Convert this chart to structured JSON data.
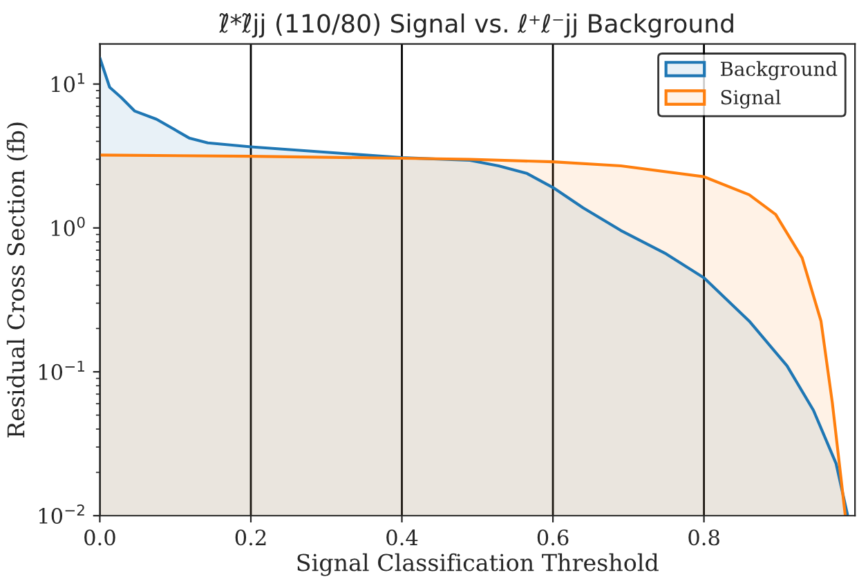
{
  "chart_data": {
    "type": "area",
    "title": "ℓ̃*ℓ̃jj (110/80) Signal vs. ℓ⁺ℓ⁻jj Background",
    "xlabel": "Signal Classification Threshold",
    "ylabel": "Residual Cross Section (fb)",
    "log": "y",
    "grid": "x",
    "legend": "top right",
    "xlim": [
      0,
      1.0
    ],
    "xticks": [
      {
        "value": 0,
        "label": "0.0"
      },
      0.2,
      0.4,
      0.6,
      0.8
    ],
    "ylim": [
      0.01,
      19
    ],
    "yticks": [
      {
        "value": 0.01,
        "label": "10$^{−2}$"
      },
      {
        "value": 0.1,
        "label": "10$^{−1}$"
      },
      {
        "value": 1,
        "label": "10$^{0}$"
      },
      {
        "value": 10,
        "label": "10$^{1}$"
      }
    ],
    "series": [
      {
        "name": "Background",
        "color": "#1f77b4",
        "x": [
          0,
          0.013,
          0.028,
          0.046,
          0.075,
          0.119,
          0.143,
          0.2,
          0.4,
          0.49,
          0.528,
          0.565,
          0.6,
          0.64,
          0.69,
          0.75,
          0.8,
          0.86,
          0.91,
          0.945,
          0.975,
          0.99
        ],
        "values": [
          15.2,
          9.5,
          8.1,
          6.5,
          5.7,
          4.2,
          3.9,
          3.66,
          3.08,
          2.95,
          2.7,
          2.4,
          1.91,
          1.38,
          0.96,
          0.66,
          0.45,
          0.225,
          0.11,
          0.054,
          0.023,
          0.0102
        ]
      },
      {
        "name": "Signal",
        "color": "#ff7f0e",
        "x": [
          0,
          0.2,
          0.4,
          0.49,
          0.6,
          0.69,
          0.8,
          0.86,
          0.895,
          0.93,
          0.955,
          0.97,
          0.987
        ],
        "values": [
          3.21,
          3.15,
          3.05,
          3.0,
          2.88,
          2.7,
          2.27,
          1.7,
          1.24,
          0.62,
          0.225,
          0.061,
          0.0102
        ]
      }
    ]
  }
}
